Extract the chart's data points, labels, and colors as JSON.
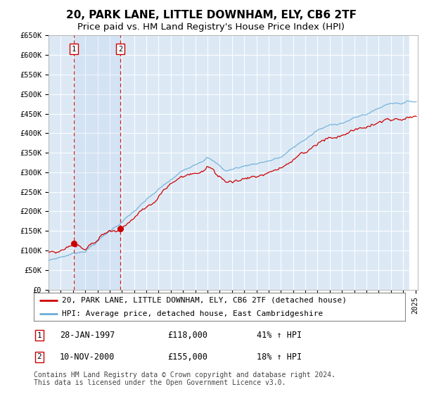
{
  "title": "20, PARK LANE, LITTLE DOWNHAM, ELY, CB6 2TF",
  "subtitle": "Price paid vs. HM Land Registry's House Price Index (HPI)",
  "ylim": [
    0,
    650000
  ],
  "background_color": "#ffffff",
  "plot_bg_color": "#dce9f5",
  "grid_color": "#ffffff",
  "sale1": {
    "date_num": 1997.07,
    "price": 118000,
    "label": "1",
    "date_str": "28-JAN-1997",
    "pct": "41%"
  },
  "sale2": {
    "date_num": 2000.87,
    "price": 155000,
    "label": "2",
    "date_str": "10-NOV-2000",
    "pct": "18%"
  },
  "legend_entries": [
    "20, PARK LANE, LITTLE DOWNHAM, ELY, CB6 2TF (detached house)",
    "HPI: Average price, detached house, East Cambridgeshire"
  ],
  "footnote": "Contains HM Land Registry data © Crown copyright and database right 2024.\nThis data is licensed under the Open Government Licence v3.0.",
  "hpi_color": "#6baed6",
  "price_color": "#cc0000",
  "sale_dot_color": "#cc0000",
  "dashed_color": "#cc0000",
  "title_fontsize": 11,
  "subtitle_fontsize": 9.5,
  "tick_fontsize": 7.5,
  "legend_fontsize": 8,
  "footnote_fontsize": 7
}
